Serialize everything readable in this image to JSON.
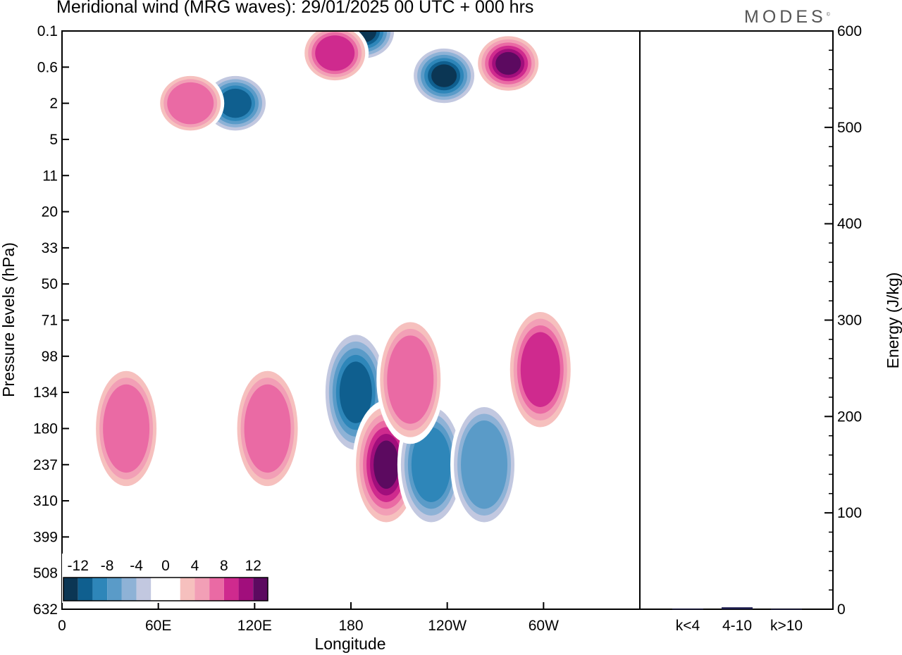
{
  "title": "Meridional wind (MRG waves):  29/01/2025  00 UTC  + 000 hrs",
  "logo": "MODES",
  "chart_data": [
    {
      "type": "heatmap",
      "variable": "Meridional wind",
      "xlabel": "Longitude",
      "ylabel": "Pressure levels (hPa)",
      "x_ticks": [
        "0",
        "60E",
        "120E",
        "180",
        "120W",
        "60W"
      ],
      "x_range_deg": [
        0,
        360
      ],
      "y_ticks": [
        "0.1",
        "0.6",
        "2",
        "5",
        "11",
        "20",
        "33",
        "50",
        "71",
        "98",
        "134",
        "180",
        "237",
        "310",
        "399",
        "508",
        "632"
      ],
      "colorbar": {
        "labels": [
          "-12",
          "-8",
          "-4",
          "0",
          "4",
          "8",
          "12"
        ],
        "levels": [
          -14,
          -12,
          -10,
          -8,
          -6,
          -4,
          -2,
          0,
          2,
          4,
          6,
          8,
          10,
          12,
          14
        ],
        "colors": [
          "#0b3654",
          "#0f5f8f",
          "#2e86b9",
          "#5a9bc8",
          "#8eb2d6",
          "#c2c8e0",
          "#ffffff",
          "#ffffff",
          "#f6c0be",
          "#f29fb6",
          "#ea6aa4",
          "#cf2a8e",
          "#a10e7c",
          "#5c0a60"
        ]
      },
      "features": [
        {
          "lon": 108,
          "plev": 2,
          "value": -12
        },
        {
          "lon": 188,
          "plev": 0.1,
          "value": -14
        },
        {
          "lon": 238,
          "plev": 0.8,
          "value": -14
        },
        {
          "lon": 278,
          "plev": 0.5,
          "value": 14
        },
        {
          "lon": 170,
          "plev": 0.3,
          "value": 10
        },
        {
          "lon": 80,
          "plev": 2,
          "value": 8
        },
        {
          "lon": 183,
          "plev": 134,
          "value": -12
        },
        {
          "lon": 202,
          "plev": 237,
          "value": 14
        },
        {
          "lon": 230,
          "plev": 237,
          "value": -10
        },
        {
          "lon": 263,
          "plev": 237,
          "value": -8
        },
        {
          "lon": 128,
          "plev": 180,
          "value": 8
        },
        {
          "lon": 40,
          "plev": 180,
          "value": 8
        },
        {
          "lon": 298,
          "plev": 110,
          "value": 10
        },
        {
          "lon": 217,
          "plev": 120,
          "value": 8
        }
      ]
    },
    {
      "type": "bar",
      "categories": [
        "k<4",
        "4-10",
        "k>10"
      ],
      "values": [
        0.5,
        2,
        0.3
      ],
      "ylabel": "Energy (J/kg)",
      "ylim": [
        0,
        600
      ],
      "y_ticks": [
        "0",
        "100",
        "200",
        "300",
        "400",
        "500",
        "600"
      ],
      "bar_color": "#1a1a4a"
    }
  ]
}
